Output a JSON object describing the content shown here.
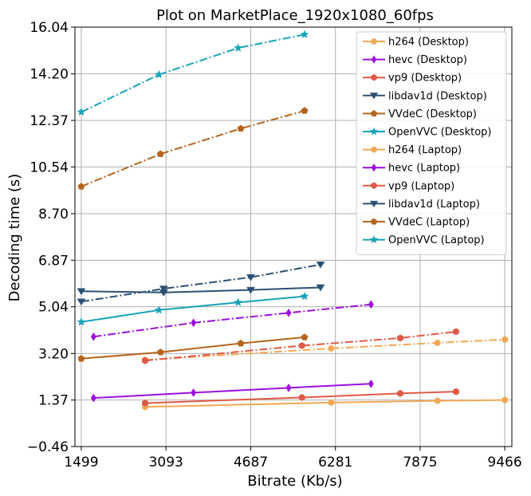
{
  "chart_data": {
    "type": "line",
    "title": "Plot on MarketPlace_1920x1080_60fps",
    "xlabel": "Bitrate (Kb/s)",
    "ylabel": "Decoding time (s)",
    "xlim": [
      1380,
      9600
    ],
    "ylim": [
      -0.46,
      16.04
    ],
    "xticks": [
      1499,
      3093,
      4687,
      6281,
      7875,
      9466
    ],
    "xtick_labels": [
      "1499",
      "3093",
      "4687",
      "6281",
      "7875",
      "9466"
    ],
    "yticks": [
      -0.46,
      1.37,
      3.2,
      5.04,
      6.87,
      8.7,
      10.54,
      12.37,
      14.2,
      16.04
    ],
    "ytick_labels": [
      "−0.46",
      "1.37",
      "3.20",
      "5.04",
      "6.87",
      "8.70",
      "10.54",
      "12.37",
      "14.20",
      "16.04"
    ],
    "grid": true,
    "legend_position": "top-right",
    "series": [
      {
        "name": "h264 (Desktop)",
        "color": "#f0a955",
        "linestyle": "solid",
        "marker": "circle",
        "x": [
          2700,
          6200,
          8200,
          9470
        ],
        "y": [
          1.1,
          1.27,
          1.34,
          1.37
        ]
      },
      {
        "name": "hevc (Desktop)",
        "color": "#9b10dc",
        "linestyle": "solid",
        "marker": "diamond",
        "x": [
          1730,
          3610,
          5400,
          6950
        ],
        "y": [
          1.45,
          1.66,
          1.85,
          2.01
        ]
      },
      {
        "name": "vp9 (Desktop)",
        "color": "#e05a47",
        "linestyle": "solid",
        "marker": "hexagon",
        "x": [
          2700,
          5650,
          7500,
          8550
        ],
        "y": [
          1.25,
          1.47,
          1.63,
          1.7
        ]
      },
      {
        "name": "libdav1d (Desktop)",
        "color": "#2c5174",
        "linestyle": "solid",
        "marker": "triangle-down",
        "x": [
          1499,
          3050,
          4687,
          6000
        ],
        "y": [
          5.65,
          5.6,
          5.7,
          5.8
        ]
      },
      {
        "name": "VVdeC (Desktop)",
        "color": "#b5651d",
        "linestyle": "solid",
        "marker": "pentagon",
        "x": [
          1499,
          2990,
          4500,
          5700
        ],
        "y": [
          3.0,
          3.25,
          3.6,
          3.84
        ]
      },
      {
        "name": "OpenVVC (Desktop)",
        "color": "#17a2b8",
        "linestyle": "solid",
        "marker": "star",
        "x": [
          1499,
          2960,
          4450,
          5700
        ],
        "y": [
          4.44,
          4.91,
          5.21,
          5.45
        ]
      },
      {
        "name": "h264 (Laptop)",
        "color": "#f0a955",
        "linestyle": "dashdot",
        "marker": "circle",
        "x": [
          2700,
          6200,
          8200,
          9470
        ],
        "y": [
          2.95,
          3.4,
          3.62,
          3.75
        ]
      },
      {
        "name": "hevc (Laptop)",
        "color": "#9b10dc",
        "linestyle": "dashdot",
        "marker": "diamond",
        "x": [
          1730,
          3610,
          5400,
          6950
        ],
        "y": [
          3.86,
          4.41,
          4.8,
          5.13
        ]
      },
      {
        "name": "vp9 (Laptop)",
        "color": "#e05a47",
        "linestyle": "dashdot",
        "marker": "hexagon",
        "x": [
          2700,
          5650,
          7500,
          8550
        ],
        "y": [
          2.92,
          3.51,
          3.81,
          4.06
        ]
      },
      {
        "name": "libdav1d (Laptop)",
        "color": "#2c5174",
        "linestyle": "dashdot",
        "marker": "triangle-down",
        "x": [
          1499,
          3050,
          4687,
          6000
        ],
        "y": [
          5.24,
          5.75,
          6.2,
          6.7
        ]
      },
      {
        "name": "VVdeC (Laptop)",
        "color": "#b5651d",
        "linestyle": "dashdot",
        "marker": "pentagon",
        "x": [
          1499,
          2990,
          4500,
          5700
        ],
        "y": [
          9.77,
          11.05,
          12.05,
          12.75
        ]
      },
      {
        "name": "OpenVVC (Laptop)",
        "color": "#17a2b8",
        "linestyle": "dashdot",
        "marker": "star",
        "x": [
          1499,
          2960,
          4450,
          5700
        ],
        "y": [
          12.7,
          14.17,
          15.22,
          15.75
        ]
      }
    ]
  }
}
